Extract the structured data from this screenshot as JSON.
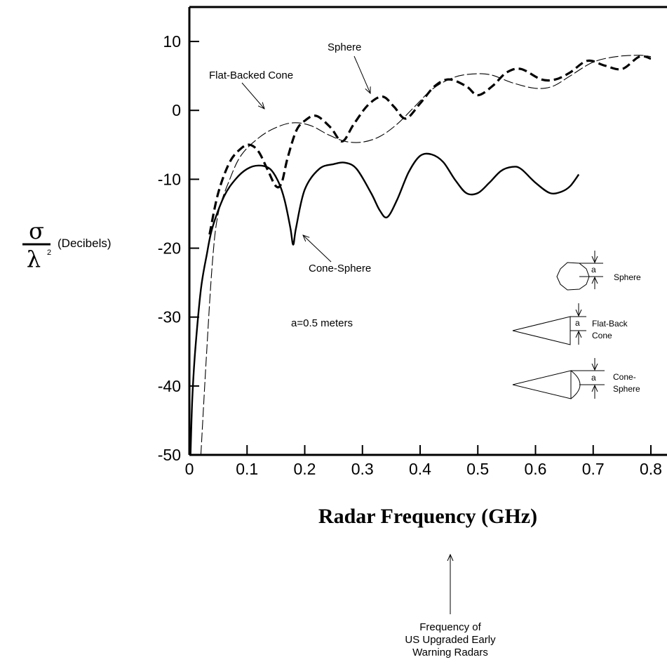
{
  "chart_data": {
    "type": "line",
    "title": "",
    "xlabel": "Radar Frequency (GHz)",
    "ylabel": {
      "numerator": "σ",
      "denominator": "λ",
      "exponent": "2",
      "unit": "(Decibels)"
    },
    "xlim": [
      0,
      0.8
    ],
    "ylim": [
      -50,
      15
    ],
    "x_ticks": [
      "0",
      "0.1",
      "0.2",
      "0.3",
      "0.4",
      "0.5",
      "0.6",
      "0.7",
      "0.8"
    ],
    "y_ticks": [
      "10",
      "0",
      "-10",
      "-20",
      "-30",
      "-40",
      "-50"
    ],
    "grid": false,
    "legend": "none",
    "series": [
      {
        "name": "Sphere",
        "style": "dashed-bold",
        "x": [
          0.035,
          0.05,
          0.07,
          0.09,
          0.105,
          0.12,
          0.135,
          0.15,
          0.16,
          0.17,
          0.185,
          0.2,
          0.22,
          0.245,
          0.265,
          0.285,
          0.31,
          0.335,
          0.355,
          0.375,
          0.4,
          0.425,
          0.45,
          0.48,
          0.5,
          0.525,
          0.55,
          0.575,
          0.61,
          0.635,
          0.66,
          0.69,
          0.72,
          0.75,
          0.78,
          0.8
        ],
        "y": [
          -18,
          -12,
          -7.5,
          -5.5,
          -5,
          -6,
          -8.5,
          -11,
          -10.5,
          -7,
          -3,
          -1.5,
          -0.8,
          -2.5,
          -4.5,
          -2,
          0.8,
          2,
          0.5,
          -1.2,
          1,
          3.5,
          4.5,
          3.5,
          2.2,
          3.5,
          5.5,
          6,
          4.5,
          4.5,
          5.5,
          7.2,
          6.5,
          6,
          7.8,
          7.5
        ]
      },
      {
        "name": "Flat-Backed Cone",
        "style": "dashed-thin",
        "x": [
          0.02,
          0.03,
          0.04,
          0.05,
          0.07,
          0.09,
          0.12,
          0.15,
          0.18,
          0.21,
          0.24,
          0.27,
          0.3,
          0.33,
          0.36,
          0.39,
          0.42,
          0.45,
          0.48,
          0.52,
          0.56,
          0.6,
          0.63,
          0.66,
          0.7,
          0.74,
          0.78,
          0.8
        ],
        "y": [
          -50,
          -35,
          -22,
          -15,
          -10,
          -6.5,
          -4,
          -2.5,
          -1.8,
          -2.2,
          -3.5,
          -4.5,
          -4.6,
          -3.8,
          -2,
          0.5,
          3,
          4.5,
          5.2,
          5.2,
          4,
          3.2,
          3.5,
          5,
          7,
          7.8,
          8,
          7.8
        ]
      },
      {
        "name": "Cone-Sphere",
        "style": "solid",
        "x": [
          0.002,
          0.005,
          0.01,
          0.02,
          0.03,
          0.04,
          0.06,
          0.08,
          0.1,
          0.12,
          0.14,
          0.155,
          0.165,
          0.175,
          0.18,
          0.185,
          0.2,
          0.225,
          0.25,
          0.27,
          0.29,
          0.315,
          0.33,
          0.343,
          0.36,
          0.38,
          0.4,
          0.42,
          0.44,
          0.46,
          0.48,
          0.5,
          0.52,
          0.54,
          0.56,
          0.575,
          0.6,
          0.625,
          0.645,
          0.66,
          0.675
        ],
        "y": [
          -50,
          -42,
          -35,
          -26,
          -21,
          -17,
          -12.5,
          -10,
          -8.5,
          -8,
          -8.5,
          -10.5,
          -13,
          -17,
          -19.5,
          -17,
          -11.5,
          -8.5,
          -7.8,
          -7.6,
          -8.5,
          -12,
          -14.5,
          -15.5,
          -13,
          -9,
          -6.6,
          -6.4,
          -7.5,
          -10,
          -12,
          -12,
          -10.5,
          -8.8,
          -8.2,
          -8.5,
          -10.5,
          -12,
          -11.8,
          -11,
          -9.3
        ]
      }
    ],
    "annotations": {
      "sphere": "Sphere",
      "flat_backed_cone": "Flat-Backed Cone",
      "cone_sphere": "Cone-Sphere",
      "radius": "a=0.5 meters",
      "arrow_caption": [
        "Frequency of",
        "US Upgraded Early",
        "Warning Radars"
      ]
    },
    "inset_legend": {
      "dimension_symbol": "a",
      "sphere_label": "Sphere",
      "flat_back_cone_label": [
        "Flat-Back",
        "Cone"
      ],
      "cone_sphere_label": [
        "Cone-",
        "Sphere"
      ]
    }
  }
}
